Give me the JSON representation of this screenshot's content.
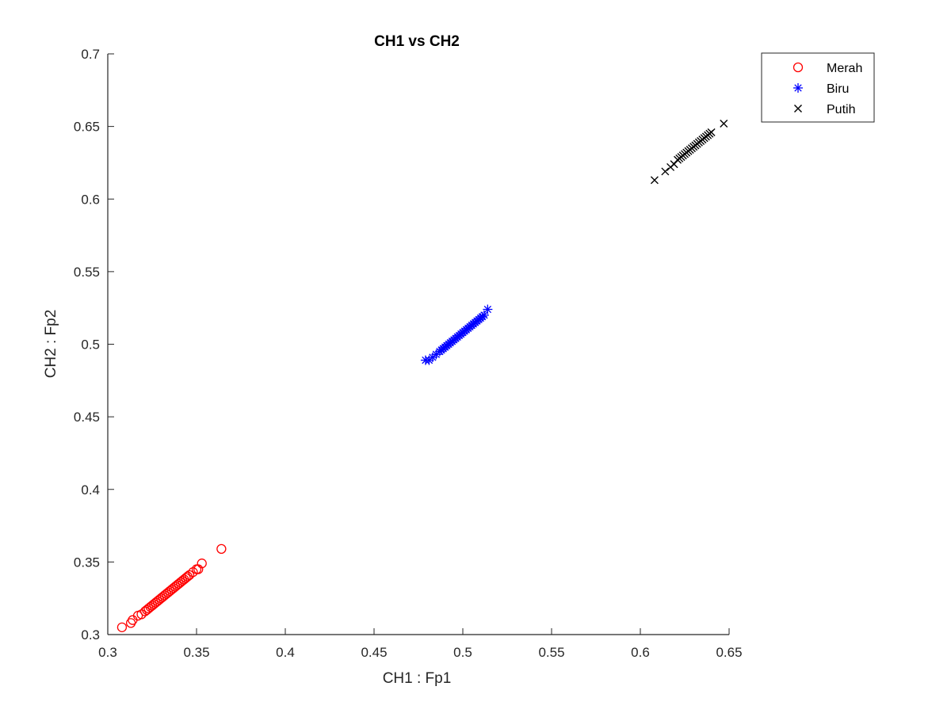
{
  "chart_data": {
    "type": "scatter",
    "title": "CH1 vs CH2",
    "xlabel": "CH1 : Fp1",
    "ylabel": "CH2 : Fp2",
    "xlim": [
      0.3,
      0.65
    ],
    "ylim": [
      0.3,
      0.7
    ],
    "xticks": [
      "0.3",
      "0.35",
      "0.4",
      "0.45",
      "0.5",
      "0.55",
      "0.6",
      "0.65"
    ],
    "yticks": [
      "0.3",
      "0.35",
      "0.4",
      "0.45",
      "0.5",
      "0.55",
      "0.6",
      "0.65",
      "0.7"
    ],
    "grid": false,
    "legend_position": "top-right outside",
    "series": [
      {
        "name": "Merah",
        "marker": "circle",
        "color": "#ff0000",
        "points": [
          [
            0.308,
            0.305
          ],
          [
            0.313,
            0.308
          ],
          [
            0.314,
            0.31
          ],
          [
            0.317,
            0.313
          ],
          [
            0.319,
            0.314
          ],
          [
            0.321,
            0.316
          ],
          [
            0.322,
            0.317
          ],
          [
            0.323,
            0.318
          ],
          [
            0.324,
            0.319
          ],
          [
            0.325,
            0.32
          ],
          [
            0.326,
            0.321
          ],
          [
            0.327,
            0.322
          ],
          [
            0.328,
            0.323
          ],
          [
            0.329,
            0.324
          ],
          [
            0.33,
            0.325
          ],
          [
            0.331,
            0.326
          ],
          [
            0.332,
            0.327
          ],
          [
            0.333,
            0.328
          ],
          [
            0.334,
            0.329
          ],
          [
            0.335,
            0.33
          ],
          [
            0.336,
            0.331
          ],
          [
            0.337,
            0.332
          ],
          [
            0.338,
            0.333
          ],
          [
            0.339,
            0.334
          ],
          [
            0.34,
            0.335
          ],
          [
            0.341,
            0.336
          ],
          [
            0.342,
            0.337
          ],
          [
            0.343,
            0.338
          ],
          [
            0.344,
            0.339
          ],
          [
            0.345,
            0.34
          ],
          [
            0.346,
            0.341
          ],
          [
            0.348,
            0.343
          ],
          [
            0.35,
            0.345
          ],
          [
            0.351,
            0.345
          ],
          [
            0.353,
            0.349
          ],
          [
            0.364,
            0.359
          ]
        ]
      },
      {
        "name": "Biru",
        "marker": "asterisk",
        "color": "#0000ff",
        "points": [
          [
            0.479,
            0.489
          ],
          [
            0.481,
            0.489
          ],
          [
            0.483,
            0.491
          ],
          [
            0.485,
            0.493
          ],
          [
            0.487,
            0.495
          ],
          [
            0.488,
            0.496
          ],
          [
            0.489,
            0.497
          ],
          [
            0.49,
            0.498
          ],
          [
            0.491,
            0.499
          ],
          [
            0.492,
            0.5
          ],
          [
            0.493,
            0.501
          ],
          [
            0.494,
            0.502
          ],
          [
            0.495,
            0.503
          ],
          [
            0.496,
            0.504
          ],
          [
            0.497,
            0.505
          ],
          [
            0.498,
            0.506
          ],
          [
            0.499,
            0.507
          ],
          [
            0.5,
            0.508
          ],
          [
            0.501,
            0.509
          ],
          [
            0.502,
            0.51
          ],
          [
            0.503,
            0.511
          ],
          [
            0.504,
            0.512
          ],
          [
            0.505,
            0.513
          ],
          [
            0.506,
            0.514
          ],
          [
            0.507,
            0.515
          ],
          [
            0.508,
            0.516
          ],
          [
            0.509,
            0.517
          ],
          [
            0.51,
            0.518
          ],
          [
            0.511,
            0.519
          ],
          [
            0.512,
            0.52
          ],
          [
            0.514,
            0.524
          ]
        ]
      },
      {
        "name": "Putih",
        "marker": "x",
        "color": "#000000",
        "points": [
          [
            0.608,
            0.613
          ],
          [
            0.614,
            0.619
          ],
          [
            0.617,
            0.622
          ],
          [
            0.619,
            0.624
          ],
          [
            0.621,
            0.627
          ],
          [
            0.622,
            0.628
          ],
          [
            0.623,
            0.629
          ],
          [
            0.624,
            0.63
          ],
          [
            0.625,
            0.631
          ],
          [
            0.626,
            0.632
          ],
          [
            0.627,
            0.633
          ],
          [
            0.628,
            0.634
          ],
          [
            0.629,
            0.635
          ],
          [
            0.63,
            0.636
          ],
          [
            0.631,
            0.637
          ],
          [
            0.632,
            0.638
          ],
          [
            0.633,
            0.639
          ],
          [
            0.634,
            0.64
          ],
          [
            0.635,
            0.641
          ],
          [
            0.636,
            0.642
          ],
          [
            0.637,
            0.643
          ],
          [
            0.638,
            0.644
          ],
          [
            0.639,
            0.645
          ],
          [
            0.64,
            0.646
          ],
          [
            0.647,
            0.652
          ]
        ]
      }
    ]
  }
}
